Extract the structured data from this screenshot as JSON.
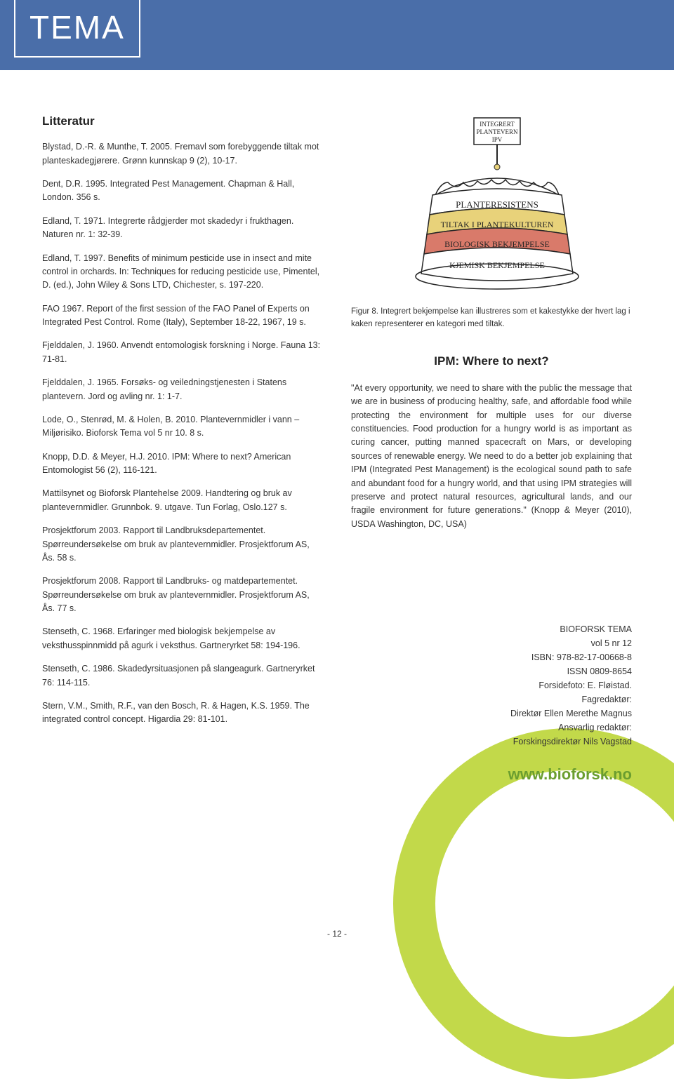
{
  "header": {
    "tema": "TEMA"
  },
  "litTitle": "Litteratur",
  "refs": [
    "Blystad, D.-R. & Munthe, T. 2005. Fremavl som forebyggende tiltak mot planteskadegjørere. Grønn kunnskap 9 (2), 10-17.",
    "Dent, D.R. 1995. Integrated Pest Management. Chapman & Hall, London. 356 s.",
    "Edland, T. 1971. Integrerte rådgjerder mot skadedyr i frukthagen. Naturen nr. 1: 32-39.",
    "Edland, T. 1997. Benefits of minimum pesticide use in insect and mite control in orchards. In: Techniques for reducing pesticide use, Pimentel, D. (ed.), John Wiley & Sons LTD, Chichester, s. 197-220.",
    "FAO 1967. Report of the first session of the FAO Panel of Experts on Integrated Pest Control. Rome (Italy), September 18-22, 1967, 19 s.",
    "Fjelddalen, J. 1960. Anvendt entomologisk forskning i Norge. Fauna 13: 71-81.",
    "Fjelddalen, J. 1965. Forsøks- og veiledningstjenesten i Statens plantevern. Jord og avling nr. 1: 1-7.",
    "Lode, O., Stenrød, M. & Holen, B. 2010. Plantevernmidler i vann – Miljørisiko. Bioforsk Tema vol 5 nr 10. 8 s.",
    "Knopp, D.D. & Meyer, H.J. 2010. IPM: Where to next? American Entomologist 56 (2), 116-121.",
    "Mattilsynet og Bioforsk Plantehelse 2009. Handtering og bruk av plantevernmidler. Grunnbok. 9. utgave. Tun Forlag, Oslo.127 s.",
    "Prosjektforum 2003. Rapport til Landbruksdepartementet. Spørreundersøkelse om bruk av plantevernmidler. Prosjektforum AS, Ås. 58 s.",
    "Prosjektforum 2008. Rapport til Landbruks- og matdepartementet. Spørreundersøkelse om bruk av plantevernmidler. Prosjektforum AS, Ås. 77 s.",
    "Stenseth, C. 1968. Erfaringer med biologisk bekjempelse av veksthusspinnmidd på agurk i veksthus. Gartneryrket 58: 194-196.",
    "Stenseth, C. 1986. Skadedyrsituasjonen på slangeagurk. Gartneryrket 76: 114-115.",
    "Stern, V.M., Smith, R.F., van den Bosch, R. & Hagen, K.S. 1959. The integrated control concept. Higardia 29: 81-101."
  ],
  "cake": {
    "flagLines": [
      "INTEGRERT",
      "PLANTEVERN",
      "IPV"
    ],
    "layers": [
      {
        "label": "PLANTERESISTENS",
        "fill": "#ffffff",
        "stroke": "#252525"
      },
      {
        "label": "TILTAK I PLANTEKULTUREN",
        "fill": "#e8d27a",
        "stroke": "#252525"
      },
      {
        "label": "BIOLOGISK BEKJEMPELSE",
        "fill": "#d97a6a",
        "stroke": "#252525"
      },
      {
        "label": "KJEMISK BEKJEMPELSE",
        "fill": "#ffffff",
        "stroke": "#252525"
      }
    ]
  },
  "figCaption": "Figur 8. Integrert bekjempelse kan illustreres som et kakestykke der hvert lag i kaken representerer en kategori med tiltak.",
  "ipmTitle": "IPM: Where to next?",
  "ipmBody": "\"At every opportunity, we need to share with the public the message that we are in business of producing healthy, safe, and affordable food while protecting the environment for multiple uses for our diverse constituencies. Food production for a hungry world is as important as curing cancer, putting manned spacecraft on Mars, or developing sources of renewable energy. We need to do a better job explaining that IPM (Integrated Pest Management) is the ecological sound path to safe and abundant food for a hungry world, and that using IPM strategies will preserve and protect natural resources, agricultural lands, and our fragile environment for future generations.\" (Knopp & Meyer (2010), USDA Washington, DC, USA)",
  "pub": {
    "l1": "BIOFORSK TEMA",
    "l2": "vol 5 nr 12",
    "l3": "ISBN: 978-82-17-00668-8",
    "l4": "ISSN 0809-8654",
    "l5": "Forsidefoto: E. Fløistad.",
    "l6": "Fagredaktør:",
    "l7": "Direktør Ellen Merethe Magnus",
    "l8": "Ansvarlig redaktør:",
    "l9": "Forskingsdirektør Nils Vagstad"
  },
  "website": "www.bioforsk.no",
  "pageNum": "- 12 -"
}
